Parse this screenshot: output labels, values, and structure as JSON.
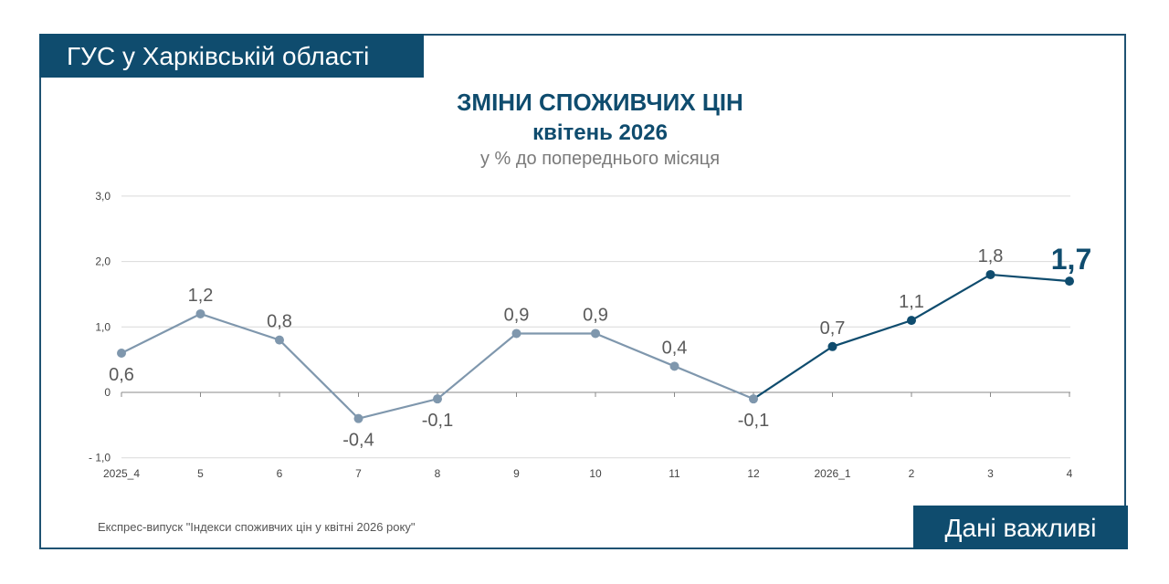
{
  "header": {
    "organization": "ГУС у Харківській області",
    "title": "ЗМІНИ СПОЖИВЧИХ ЦІН",
    "period": "квітень 2026",
    "unit_note": "у % до попереднього місяця"
  },
  "footer": {
    "source": "Експрес-випуск \"Індекси споживчих цін у квітні 2026 року\"",
    "badge": "Дані важливі"
  },
  "colors": {
    "brand": "#0f4c6e",
    "series_past": "#7f97ad",
    "series_recent": "#0f4c6e",
    "label_text": "#5a5a5a"
  },
  "chart_data": {
    "type": "line",
    "title": "ЗМІНИ СПОЖИВЧИХ ЦІН",
    "subtitle": "квітень 2026",
    "ylabel": "у % до попереднього місяця",
    "categories": [
      "2025_4",
      "5",
      "6",
      "7",
      "8",
      "9",
      "10",
      "11",
      "12",
      "2026_1",
      "2",
      "3",
      "4"
    ],
    "values": [
      0.6,
      1.2,
      0.8,
      -0.4,
      -0.1,
      0.9,
      0.9,
      0.4,
      -0.1,
      0.7,
      1.1,
      1.8,
      1.7
    ],
    "value_labels": [
      "0,6",
      "1,2",
      "0,8",
      "-0,4",
      "-0,1",
      "0,9",
      "0,9",
      "0,4",
      "-0,1",
      "0,7",
      "1,1",
      "1,8",
      "1,7"
    ],
    "y_ticks": [
      {
        "value": 3,
        "label": "3,0"
      },
      {
        "value": 2,
        "label": "2,0"
      },
      {
        "value": 1,
        "label": "1,0"
      },
      {
        "value": 0,
        "label": "0"
      },
      {
        "value": -1,
        "label": "- 1,0"
      }
    ],
    "ylim": [
      -1,
      3
    ],
    "grid": true,
    "highlight_from_index": 8,
    "highlight_last": true,
    "legend": "none"
  }
}
